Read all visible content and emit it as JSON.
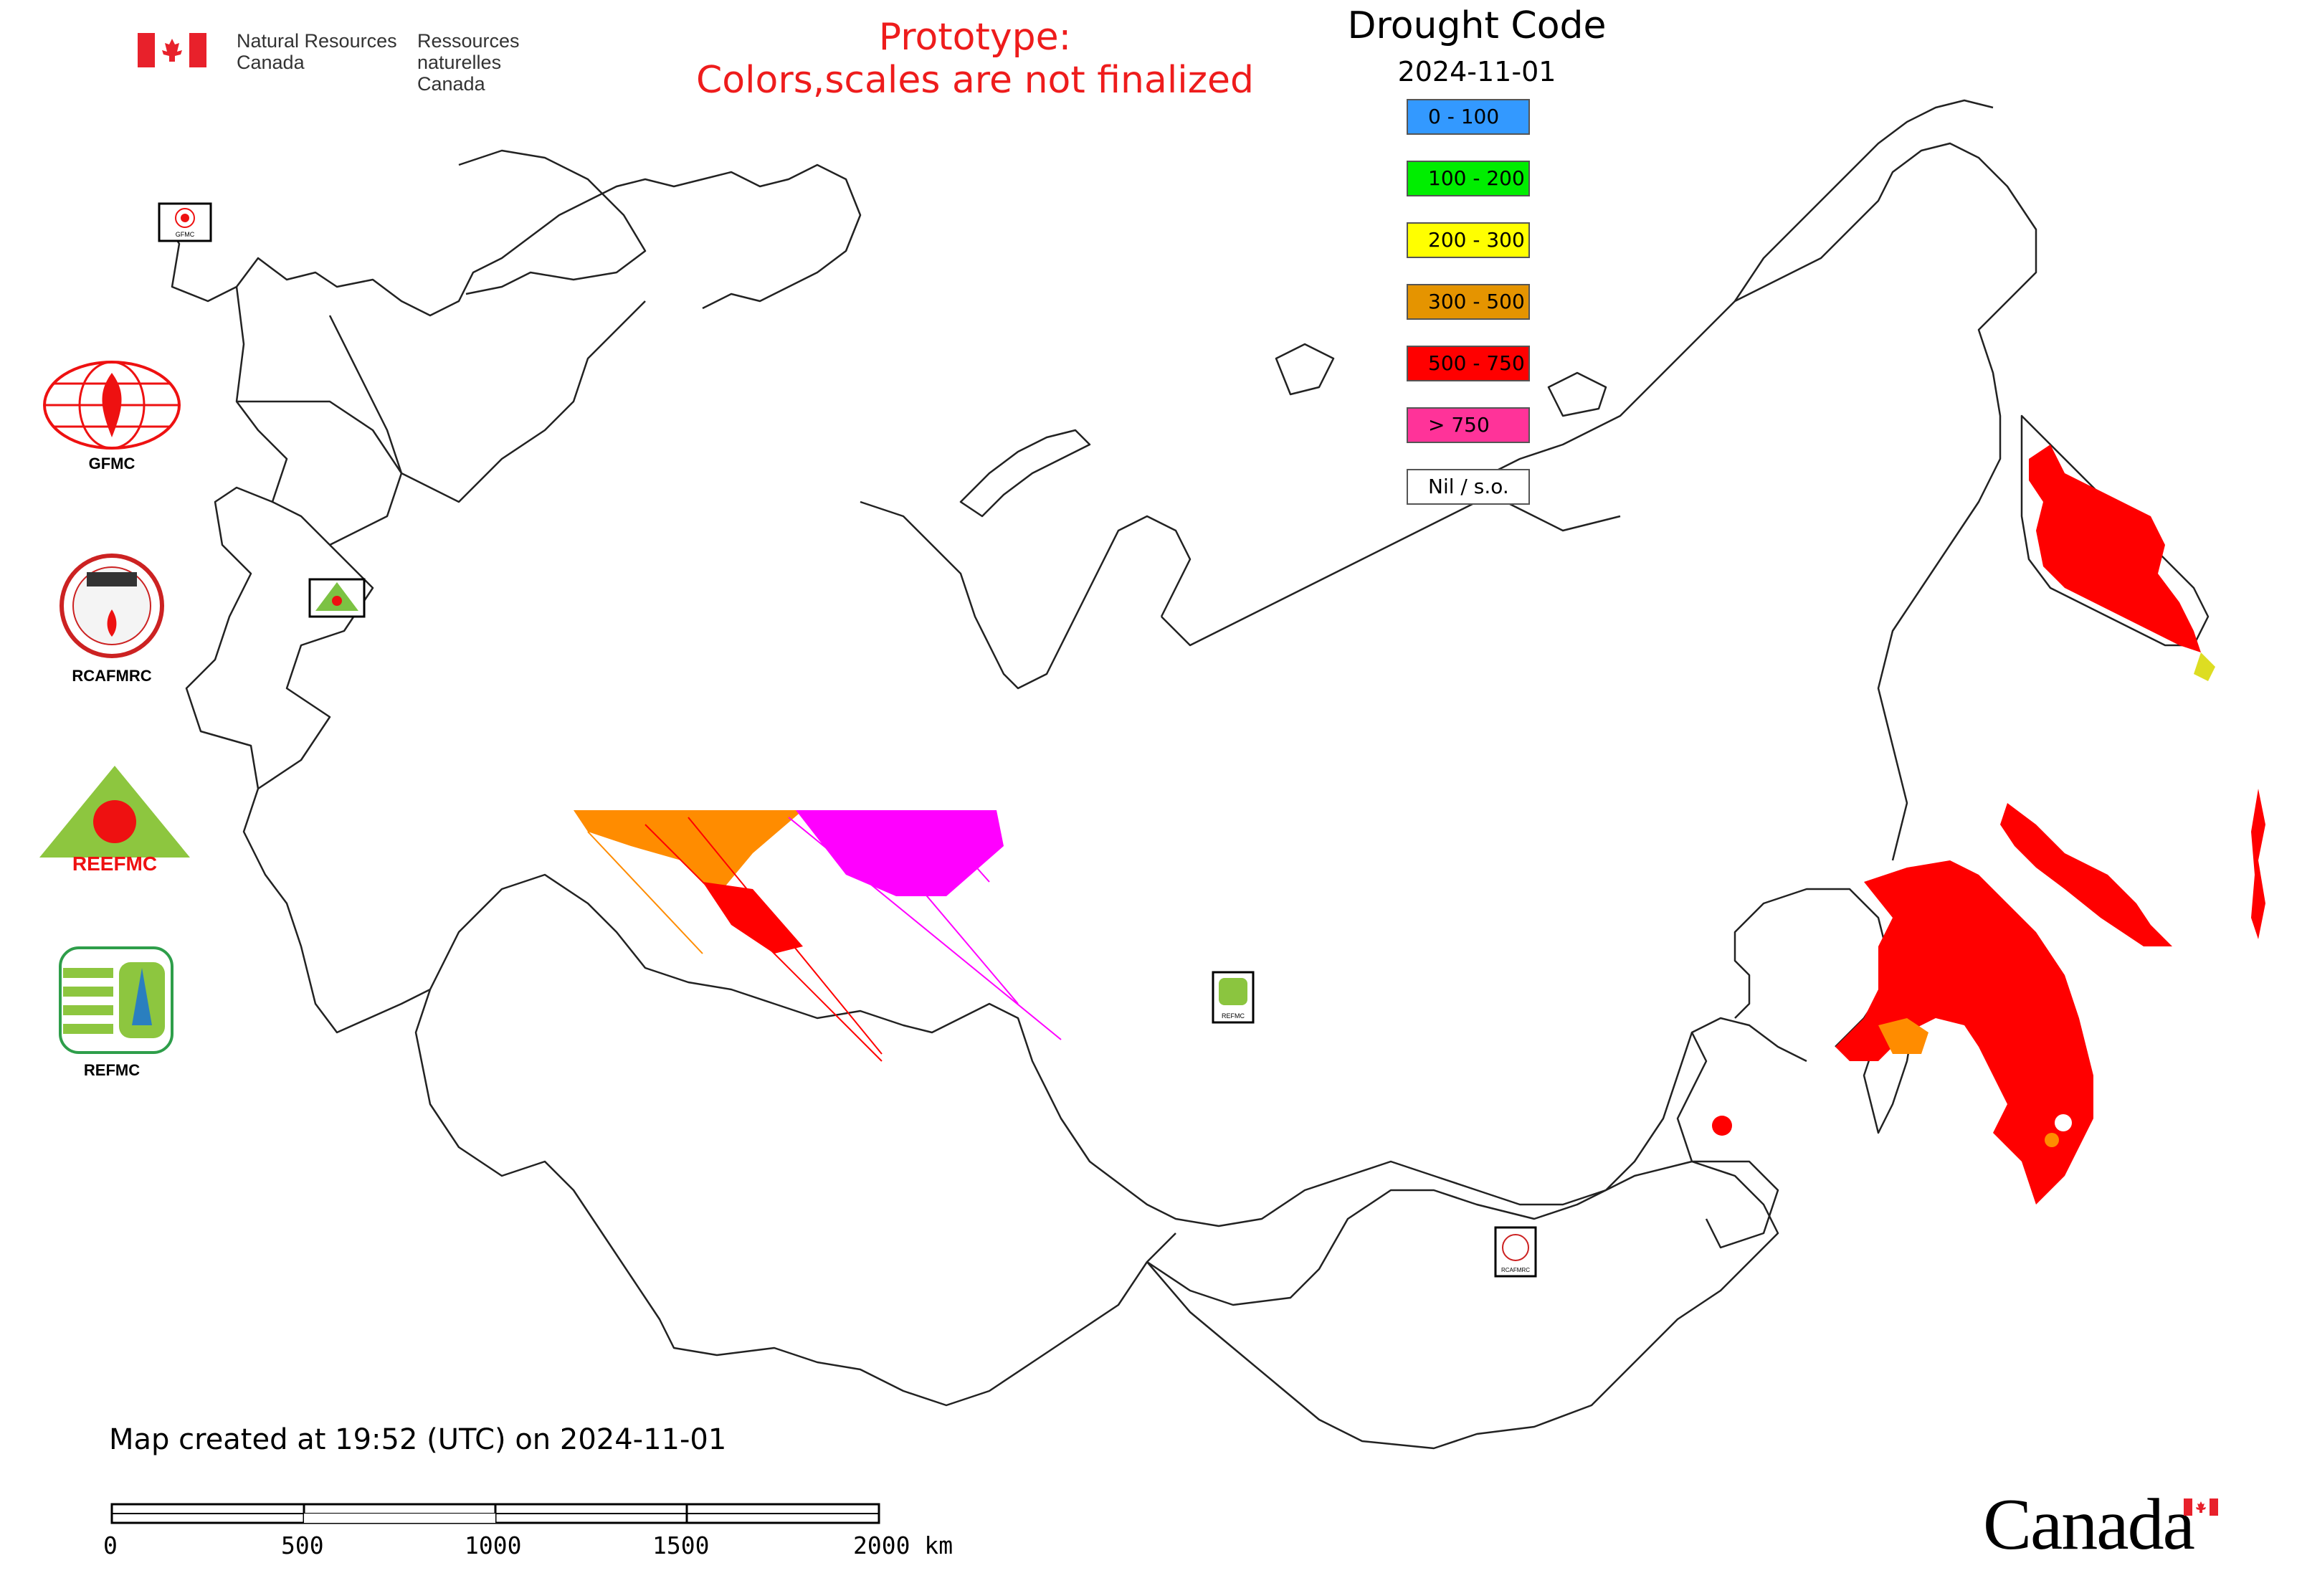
{
  "header": {
    "agency_en_line1": "Natural Resources",
    "agency_en_line2": "Canada",
    "agency_fr_line1": "Ressources naturelles",
    "agency_fr_line2": "Canada"
  },
  "notice": {
    "line1": "Prototype:",
    "line2": "Colors,scales are not finalized"
  },
  "legend": {
    "title": "Drought Code",
    "date": "2024-11-01",
    "items": [
      {
        "label": "0 - 100",
        "color": "#3399ff"
      },
      {
        "label": "100 - 200",
        "color": "#00ee00"
      },
      {
        "label": "200 - 300",
        "color": "#ffff00"
      },
      {
        "label": "300 - 500",
        "color": "#e59400"
      },
      {
        "label": "500 - 750",
        "color": "#ff0000"
      },
      {
        "label": "> 750",
        "color": "#ff3399"
      },
      {
        "label": "Nil / s.o.",
        "color": "#ffffff"
      }
    ]
  },
  "side_logos": {
    "gfmc": "GFMC",
    "rcafmrc": "RCAFMRC",
    "reefmc": "REEFMC",
    "refmc": "REFMC"
  },
  "map_markers": {
    "gfmc": "GFMC",
    "reefmc": "REEFMC",
    "refmc": "REFMC",
    "rcafmrc": "RCAFMRC"
  },
  "footer": {
    "created": "Map created at 19:52 (UTC) on 2024-11-01",
    "scale_labels": [
      "0",
      "500",
      "1000",
      "1500",
      "2000 km"
    ],
    "wordmark": "Canada"
  },
  "colors": {
    "red_text": "#ee1c1c",
    "fire_red": "#ff0000",
    "orange": "#ff8c00",
    "magenta": "#ff00ff"
  }
}
